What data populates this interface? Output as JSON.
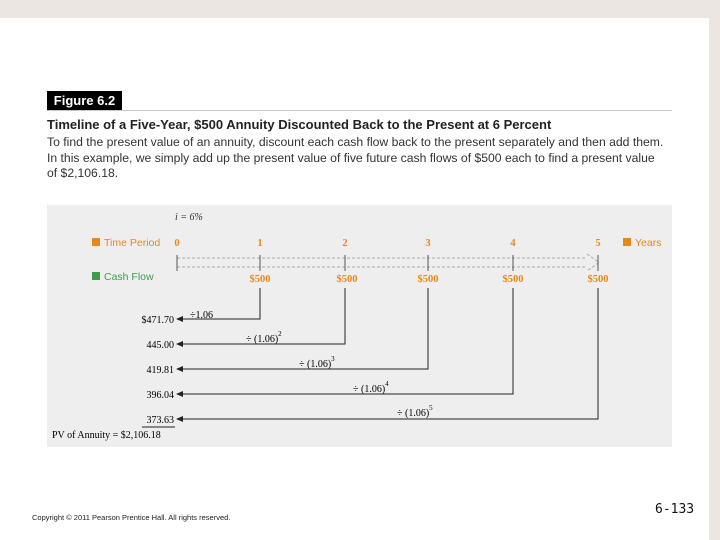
{
  "figure": {
    "label": "Figure 6.2",
    "title": "Timeline of a Five-Year, $500 Annuity Discounted Back to the Present at 6 Percent",
    "caption": "To find the present value of an annuity, discount each cash flow back to the present separately and then add them. In this example, we simply add up the present value of five future cash flows of $500 each to find a present value of $2,106.18."
  },
  "diagram": {
    "rate_label": "i = 6%",
    "time_period_label": "Time Period",
    "cash_flow_label": "Cash Flow",
    "years_label": "Years",
    "periods": [
      "0",
      "1",
      "2",
      "3",
      "4",
      "5"
    ],
    "cash_flows": [
      "$500",
      "$500",
      "$500",
      "$500",
      "$500"
    ],
    "present_values": [
      "$471.70",
      "445.00",
      "419.81",
      "396.04",
      "373.63"
    ],
    "divisors": [
      "÷1.06",
      "÷ (1.06)",
      "÷ (1.06)",
      "÷ (1.06)",
      "÷ (1.06)"
    ],
    "exponents": [
      "",
      "2",
      "3",
      "4",
      "5"
    ],
    "total_label": "PV of Annuity = $2,106.18",
    "colors": {
      "accent": "#e8861e",
      "cash_flow": "#3f9b4c",
      "arrow": "#222222"
    }
  },
  "footer": {
    "copyright": "Copyright © 2011 Pearson Prentice Hall. All rights reserved.",
    "slide_number": "6-133"
  }
}
